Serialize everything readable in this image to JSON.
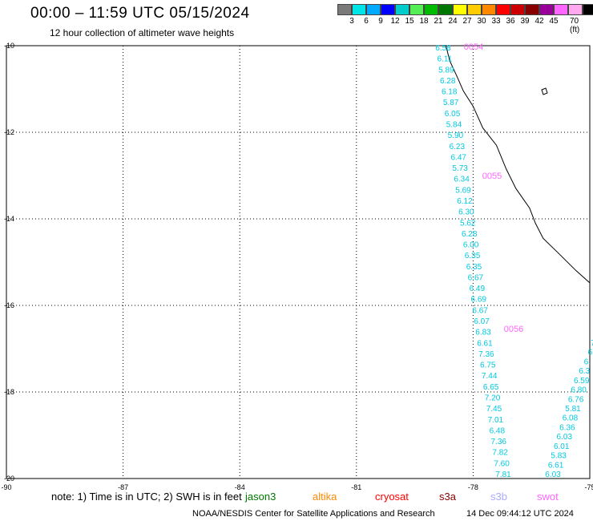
{
  "title": "00:00 – 11:59 UTC 05/15/2024",
  "subtitle": "12 hour collection of altimeter wave heights",
  "legend": {
    "colors": [
      "#7a7a7a",
      "#00e5e5",
      "#00aaff",
      "#0000ff",
      "#00cccc",
      "#55ee55",
      "#00bb00",
      "#007700",
      "#ffff00",
      "#ffcc00",
      "#ff8800",
      "#ff0000",
      "#cc0000",
      "#880000",
      "#990099",
      "#ff66ff",
      "#ffaaee",
      "#000000"
    ],
    "labels": [
      "3",
      "6",
      "9",
      "12",
      "15",
      "18",
      "21",
      "24",
      "27",
      "30",
      "33",
      "36",
      "39",
      "42",
      "45",
      "70 (ft)"
    ]
  },
  "axes": {
    "lat_ticks": [
      "-10",
      "-12",
      "-14",
      "-16",
      "-18",
      "-20"
    ],
    "lon_ticks": [
      "-90",
      "-87",
      "-84",
      "-81",
      "-78",
      "-75"
    ]
  },
  "track_times": [
    "0054",
    "0055",
    "0056"
  ],
  "track1_values": [
    "6.58",
    "6.11",
    "5.89",
    "6.28",
    "6.18",
    "5.87",
    "6.05",
    "5.84",
    "5.90",
    "6.23",
    "6.47",
    "5.73",
    "6.34",
    "5.69",
    "6.12",
    "6.30",
    "5.62",
    "6.28",
    "6.00",
    "6.35",
    "6.35",
    "6.67",
    "6.49",
    "6.69",
    "6.67",
    "6.07",
    "6.83",
    "6.61",
    "7.36",
    "6.75",
    "7.44",
    "6.65",
    "7.20",
    "7.45",
    "7.01",
    "6.48",
    "7.36",
    "7.82",
    "7.60",
    "7.81"
  ],
  "track2_values": [
    "7",
    "6",
    "6.",
    "6.3",
    "6.59",
    "6.80",
    "6.76",
    "5.81",
    "6.08",
    "6.36",
    "6.03",
    "6.01",
    "5.83",
    "6.61",
    "6.03"
  ],
  "note": "note: 1) Time is in UTC; 2) SWH is in feet",
  "satellites": [
    {
      "name": "jason3",
      "color": "#007700"
    },
    {
      "name": "altika",
      "color": "#ff8800"
    },
    {
      "name": "cryosat",
      "color": "#ff0000"
    },
    {
      "name": "s3a",
      "color": "#880000"
    },
    {
      "name": "s3b",
      "color": "#aaaaff"
    },
    {
      "name": "swot",
      "color": "#ff66ff"
    }
  ],
  "credit": "NOAA/NESDIS Center for Satellite Applications and Research",
  "timestamp": "14 Dec 09:44:12 UTC 2024",
  "colors": {
    "wave_label": "#00c8e0",
    "time_label": "#ff66ff",
    "coast": "#000000"
  }
}
